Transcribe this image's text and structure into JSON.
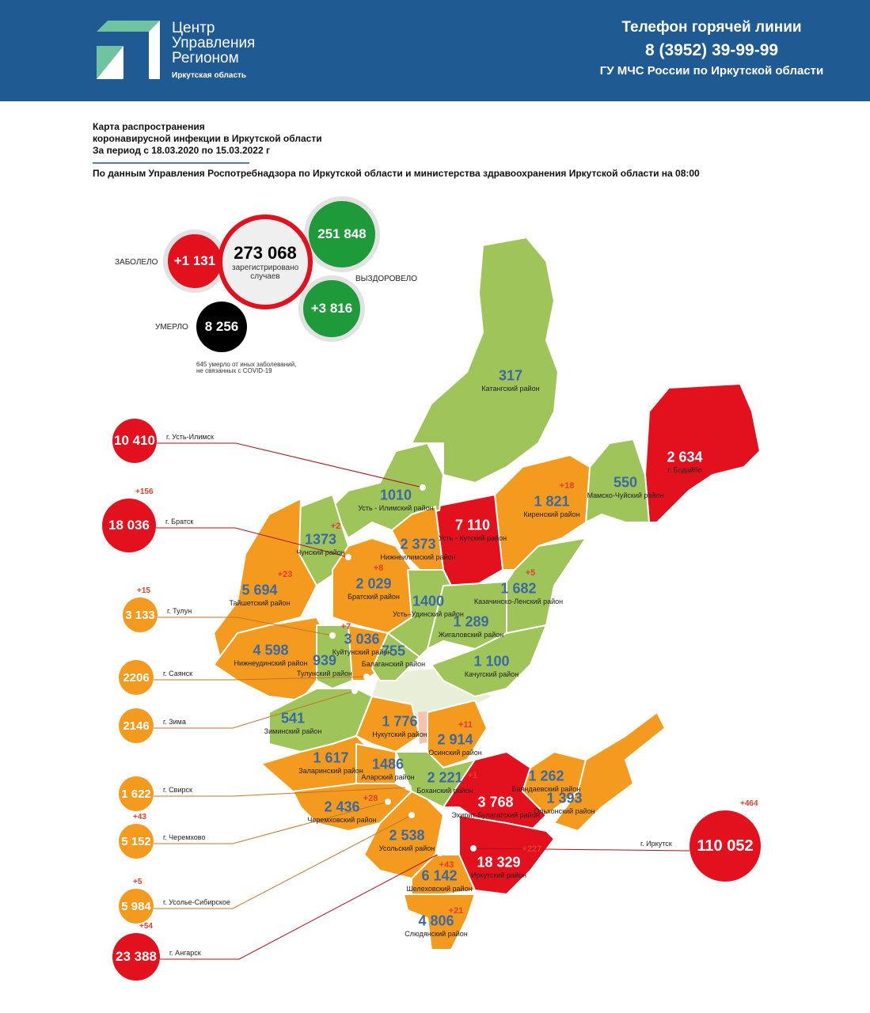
{
  "header": {
    "logo_lines": [
      "Центр",
      "Управления",
      "Регионом"
    ],
    "logo_sub": "Иркутская область",
    "hotline_title": "Телефон горячей линии",
    "hotline_phone": "8 (3952) 39-99-99",
    "hotline_org": "ГУ МЧС России по Иркутской области"
  },
  "title": {
    "line1": "Карта распространения",
    "line2": "коронавирусной инфекции в Иркутской области",
    "line3": "За период с 18.03.2020 по 15.03.2022 г",
    "source": "По данным Управления Роспотребнадзора по Иркутской области и министерства здравоохранения Иркутской области на 08:00"
  },
  "stats": {
    "sick_label": "ЗАБОЛЕЛО",
    "sick_delta": "+1 131",
    "total": "273 068",
    "total_caption": "зарегистрировано случаев",
    "recovered": "251 848",
    "recovered_label": "ВЫЗДОРОВЕЛО",
    "recovered_delta": "+3 816",
    "died_label": "УМЕРЛО",
    "died": "8 256",
    "died_note": "645 умерло от иных заболеваний, не связанных с COVID-19"
  },
  "colors": {
    "red": "#e3101d",
    "orange": "#f39a1f",
    "green": "#9fc55a",
    "dark_green": "#1f9a3a",
    "header": "#1f5a93",
    "number_blue": "#3b6aa3",
    "delta_red": "#e53d2f"
  },
  "regions": [
    {
      "name": "Катангский район",
      "value": "317",
      "delta": "",
      "level": "green"
    },
    {
      "name": "г. Бодайбо",
      "value": "2 634",
      "delta": "",
      "level": "red"
    },
    {
      "name": "Мамско-Чуйский район",
      "value": "550",
      "delta": "",
      "level": "green"
    },
    {
      "name": "Киренский район",
      "value": "1 821",
      "delta": "+18",
      "level": "orange"
    },
    {
      "name": "Усть - Кутский район",
      "value": "7 110",
      "delta": "",
      "level": "red"
    },
    {
      "name": "Усть - Илимский район",
      "value": "1010",
      "delta": "",
      "level": "green"
    },
    {
      "name": "Нижнеилимский район",
      "value": "2 373",
      "delta": "",
      "level": "orange"
    },
    {
      "name": "Чунский район",
      "value": "1373",
      "delta": "+2",
      "level": "green"
    },
    {
      "name": "Братский район",
      "value": "2 029",
      "delta": "+8",
      "level": "orange"
    },
    {
      "name": "Тайшетский район",
      "value": "5 694",
      "delta": "+23",
      "level": "orange"
    },
    {
      "name": "Казачинско-Ленский район",
      "value": "1 682",
      "delta": "+5",
      "level": "green"
    },
    {
      "name": "Усть–Удинский район",
      "value": "1400",
      "delta": "",
      "level": "green"
    },
    {
      "name": "Жигаловский район",
      "value": "1 289",
      "delta": "",
      "level": "green"
    },
    {
      "name": "Куйтунский район",
      "value": "3 036",
      "delta": "+7",
      "level": "orange"
    },
    {
      "name": "Нижнеудинский район",
      "value": "4 598",
      "delta": "",
      "level": "orange"
    },
    {
      "name": "Тулунский район",
      "value": "939",
      "delta": "",
      "level": "green"
    },
    {
      "name": "Балаганский район",
      "value": "755",
      "delta": "",
      "level": "green"
    },
    {
      "name": "Качугский район",
      "value": "1 100",
      "delta": "",
      "level": "green"
    },
    {
      "name": "Зиминский район",
      "value": "541",
      "delta": "",
      "level": "green"
    },
    {
      "name": "Нукутский район",
      "value": "1 776",
      "delta": "",
      "level": "orange"
    },
    {
      "name": "Осинский район",
      "value": "2 914",
      "delta": "+11",
      "level": "orange"
    },
    {
      "name": "Заларинский район",
      "value": "1 617",
      "delta": "",
      "level": "orange"
    },
    {
      "name": "Аларский район",
      "value": "1486",
      "delta": "",
      "level": "orange"
    },
    {
      "name": "Боханский район",
      "value": "2 221",
      "delta": "+1",
      "level": "green"
    },
    {
      "name": "Баяндаевский район",
      "value": "1 262",
      "delta": "",
      "level": "orange"
    },
    {
      "name": "Эхирит-Булагатский район",
      "value": "3 768",
      "delta": "",
      "level": "red"
    },
    {
      "name": "Ольхонский район",
      "value": "1 393",
      "delta": "",
      "level": "orange"
    },
    {
      "name": "Черемховский район",
      "value": "2 436",
      "delta": "+28",
      "level": "orange"
    },
    {
      "name": "Усольский район",
      "value": "2 538",
      "delta": "",
      "level": "orange"
    },
    {
      "name": "Иркутский район",
      "value": "18 329",
      "delta": "+227",
      "level": "red"
    },
    {
      "name": "Шелеховский район",
      "value": "6 142",
      "delta": "+43",
      "level": "orange"
    },
    {
      "name": "Слюдянский район",
      "value": "4 806",
      "delta": "+21",
      "level": "orange"
    }
  ],
  "cities": [
    {
      "name": "г. Усть-Илимск",
      "value": "10 410",
      "delta": "",
      "level": "red"
    },
    {
      "name": "г. Братск",
      "value": "18 036",
      "delta": "+156",
      "level": "red"
    },
    {
      "name": "г. Тулун",
      "value": "3 133",
      "delta": "+15",
      "level": "orange"
    },
    {
      "name": "г. Саянск",
      "value": "2206",
      "delta": "",
      "level": "orange"
    },
    {
      "name": "г. Зима",
      "value": "2146",
      "delta": "",
      "level": "orange"
    },
    {
      "name": "г. Свирск",
      "value": "1 622",
      "delta": "",
      "level": "orange"
    },
    {
      "name": "г. Черемхово",
      "value": "5 152",
      "delta": "+43",
      "level": "orange"
    },
    {
      "name": "г. Усолье-Сибирское",
      "value": "5 984",
      "delta": "+5",
      "level": "orange"
    },
    {
      "name": "г. Ангарск",
      "value": "23 388",
      "delta": "+54",
      "level": "red"
    },
    {
      "name": "г. Иркутск",
      "value": "110 052",
      "delta": "+464",
      "level": "red"
    }
  ]
}
